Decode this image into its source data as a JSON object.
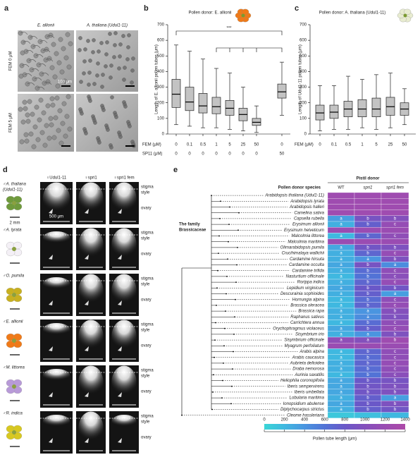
{
  "panel_a": {
    "label": "a",
    "columns": [
      "E. allionii",
      "A. thaliana (Udul1-11)"
    ],
    "rows": [
      "FEM 0 μM",
      "FEM 5 μM"
    ],
    "scale_bar": "100 μm"
  },
  "panel_d": {
    "label": "d",
    "columns": [
      "♀Udul1-11",
      "♀spri1",
      "♀spri1 fem"
    ],
    "rows": [
      {
        "name": [
          "♂A. thaliana",
          "(Udul1-11)"
        ],
        "flower_color": "#6f9a3c"
      },
      {
        "name": [
          "♂A. lyrata"
        ],
        "flower_color": "#f4f0f6"
      },
      {
        "name": [
          "♂O. pumila"
        ],
        "flower_color": "#c8b020"
      },
      {
        "name": [
          "♂E. allionii"
        ],
        "flower_color": "#f07a18"
      },
      {
        "name": [
          "♂M. littorea"
        ],
        "flower_color": "#b89ad8"
      },
      {
        "name": [
          "♂R. indica"
        ],
        "flower_color": "#d8c820"
      }
    ],
    "regions": [
      "stigma",
      "style",
      "ovary"
    ],
    "scale_bar": "500 μm",
    "flower_scale": "2 mm"
  },
  "chart_data": [
    {
      "type": "box",
      "label": "b",
      "title": "Pollen donor: E. allionii",
      "y_label": "Length of E. allionii pollen tubes (μm)",
      "ylim": [
        0,
        700
      ],
      "yticks": [
        0,
        100,
        200,
        300,
        400,
        500,
        600,
        700
      ],
      "significance": "***",
      "x_rows": [
        {
          "name": "FEM (μM)",
          "values": [
            0,
            0.1,
            0.5,
            1,
            5,
            25,
            50,
            0
          ]
        },
        {
          "name": "SP11 (μM)",
          "values": [
            0,
            0,
            0,
            0,
            0,
            0,
            0,
            50
          ]
        }
      ],
      "color": "#b8b8b8",
      "boxes": [
        {
          "whislo": 60,
          "q1": 170,
          "med": 255,
          "q3": 350,
          "whishi": 570
        },
        {
          "whislo": 50,
          "q1": 150,
          "med": 205,
          "q3": 300,
          "whishi": 530
        },
        {
          "whislo": 40,
          "q1": 135,
          "med": 180,
          "q3": 260,
          "whishi": 480
        },
        {
          "whislo": 40,
          "q1": 130,
          "med": 175,
          "q3": 235,
          "whishi": 420
        },
        {
          "whislo": 30,
          "q1": 120,
          "med": 165,
          "q3": 215,
          "whishi": 390
        },
        {
          "whislo": 20,
          "q1": 85,
          "med": 125,
          "q3": 165,
          "whishi": 300
        },
        {
          "whislo": 10,
          "q1": 55,
          "med": 75,
          "q3": 100,
          "whishi": 180
        },
        {
          "whislo": 120,
          "q1": 230,
          "med": 270,
          "q3": 320,
          "whishi": 460
        }
      ]
    },
    {
      "type": "box",
      "label": "c",
      "title": "Pollen donor: A. thaliana (Udul1-11)",
      "y_label": "Length of Udul1-11 pollen tubes (μm)",
      "ylim": [
        0,
        700
      ],
      "yticks": [
        0,
        100,
        200,
        300,
        400,
        500,
        600,
        700
      ],
      "x_rows": [
        {
          "name": "FEM (μM)",
          "values": [
            0,
            0.1,
            0.5,
            1,
            5,
            25,
            50
          ]
        }
      ],
      "color": "#b8b8b8",
      "boxes": [
        {
          "whislo": 20,
          "q1": 90,
          "med": 135,
          "q3": 185,
          "whishi": 310
        },
        {
          "whislo": 30,
          "q1": 100,
          "med": 140,
          "q3": 185,
          "whishi": 310
        },
        {
          "whislo": 30,
          "q1": 110,
          "med": 160,
          "q3": 210,
          "whishi": 370
        },
        {
          "whislo": 40,
          "q1": 110,
          "med": 160,
          "q3": 220,
          "whishi": 350
        },
        {
          "whislo": 30,
          "q1": 110,
          "med": 160,
          "q3": 230,
          "whishi": 380
        },
        {
          "whislo": 40,
          "q1": 120,
          "med": 175,
          "q3": 235,
          "whishi": 390
        },
        {
          "whislo": 60,
          "q1": 120,
          "med": 160,
          "q3": 200,
          "whishi": 290
        }
      ]
    },
    {
      "type": "heatmap",
      "label": "e",
      "title": "Pistil donor",
      "row_header": "Pollen donor species",
      "annotation": [
        "The family",
        "Brassicaceae"
      ],
      "columns": [
        "WT",
        "spri1",
        "spri1 fem"
      ],
      "rows": [
        "Arabidopsis thaliana (Udul1-11)",
        "Arabidopsis lyrata",
        "Arabidopsis halleri",
        "Camelina sativa",
        "Capsella rubella",
        "Erysimum allionii",
        "Erysimum helveticum",
        "Malcolmia littorea",
        "Malcolmia maritima",
        "Olimarabidopsis pumila",
        "Crucihimalaya wallichii",
        "Cardamine hirsuta",
        "Cardamine occulta",
        "Cardamine trifida",
        "Nasturtium officinale",
        "Rorippa indica",
        "Lepidium virginicum",
        "Descurainia sophioides",
        "Hornungia alpina",
        "Brassica oleracea",
        "Brassica rapa",
        "Raphanus sativus",
        "Carrichtera annua",
        "Orychophragmus violaceus",
        "Sisymbrium irio",
        "Sisymbrium officinale",
        "Myagrum perfoliatum",
        "Arabis alpina",
        "Arabis caucasica",
        "Aubrieta deltoidea",
        "Draba nemorosa",
        "Aurinia saxatilis",
        "Heliophila coronopifolia",
        "Iberis sempervirens",
        "Iberis umbellata",
        "Lobularia maritima",
        "Ionopsidium abulense",
        "Diptychocarpus strictus",
        "Cleome hassleriana"
      ],
      "values": [
        [
          1250,
          1250,
          1250
        ],
        [
          1250,
          1250,
          1250
        ],
        [
          1250,
          1250,
          1250
        ],
        [
          1250,
          1250,
          1250
        ],
        [
          350,
          900,
          1000
        ],
        [
          250,
          750,
          1150
        ],
        [
          1200,
          1200,
          1200
        ],
        [
          200,
          700,
          1100
        ],
        [
          1200,
          1200,
          1200
        ],
        [
          300,
          850,
          950
        ],
        [
          250,
          700,
          1150
        ],
        [
          250,
          400,
          950
        ],
        [
          300,
          900,
          450
        ],
        [
          250,
          650,
          1100
        ],
        [
          200,
          600,
          1050
        ],
        [
          250,
          700,
          1150
        ],
        [
          300,
          800,
          850
        ],
        [
          250,
          750,
          350
        ],
        [
          200,
          650,
          1100
        ],
        [
          200,
          700,
          1150
        ],
        [
          250,
          400,
          1000
        ],
        [
          250,
          450,
          950
        ],
        [
          200,
          650,
          1100
        ],
        [
          300,
          750,
          1150
        ],
        [
          250,
          400,
          950
        ],
        [
          1100,
          1000,
          1250
        ],
        [
          1200,
          1200,
          1200
        ],
        [
          200,
          700,
          1100
        ],
        [
          200,
          650,
          1100
        ],
        [
          250,
          700,
          1150
        ],
        [
          250,
          650,
          1100
        ],
        [
          200,
          600,
          1050
        ],
        [
          300,
          800,
          900
        ],
        [
          300,
          850,
          950
        ],
        [
          300,
          850,
          950
        ],
        [
          250,
          750,
          350
        ],
        [
          300,
          800,
          950
        ],
        [
          250,
          750,
          850
        ],
        [
          100,
          150,
          200
        ]
      ],
      "letters": [
        [
          null,
          null,
          null
        ],
        [
          null,
          null,
          null
        ],
        [
          null,
          null,
          null
        ],
        [
          null,
          null,
          null
        ],
        [
          "a",
          "b",
          "b"
        ],
        [
          "a",
          "b",
          "c"
        ],
        [
          null,
          null,
          null
        ],
        [
          "a",
          "b",
          "c"
        ],
        [
          null,
          null,
          null
        ],
        [
          "a",
          "b",
          "b"
        ],
        [
          "a",
          "b",
          "c"
        ],
        [
          "a",
          "a",
          "b"
        ],
        [
          "a",
          "b",
          "a"
        ],
        [
          "a",
          "b",
          "c"
        ],
        [
          "a",
          "b",
          "c"
        ],
        [
          "a",
          "b",
          "c"
        ],
        [
          "a",
          "b",
          "b"
        ],
        [
          "a",
          "b",
          "a"
        ],
        [
          "a",
          "b",
          "c"
        ],
        [
          "a",
          "b",
          "c"
        ],
        [
          "a",
          "a",
          "b"
        ],
        [
          "a",
          "a",
          "b"
        ],
        [
          "a",
          "b",
          "c"
        ],
        [
          "a",
          "b",
          "c"
        ],
        [
          "a",
          "a",
          "b"
        ],
        [
          "a",
          "a",
          "b"
        ],
        [
          null,
          null,
          null
        ],
        [
          "a",
          "b",
          "c"
        ],
        [
          "a",
          "b",
          "c"
        ],
        [
          "a",
          "b",
          "c"
        ],
        [
          "a",
          "b",
          "c"
        ],
        [
          "a",
          "b",
          "c"
        ],
        [
          "a",
          "b",
          "b"
        ],
        [
          "a",
          "b",
          "b"
        ],
        [
          "a",
          "b",
          "b"
        ],
        [
          "a",
          "b",
          "a"
        ],
        [
          "a",
          "b",
          "b"
        ],
        [
          "a",
          "b",
          "b"
        ],
        [
          null,
          null,
          null
        ]
      ],
      "colorbar": {
        "label": "Pollen tube length (μm)",
        "lim": [
          0,
          1400
        ],
        "ticks": [
          0,
          200,
          400,
          600,
          800,
          1000,
          1200,
          1400
        ]
      },
      "colormap": [
        "#3ad6d6",
        "#3fb8e0",
        "#4a95e0",
        "#5273d6",
        "#6a58c8",
        "#8450bc",
        "#9a4cb2",
        "#ad4aa8"
      ]
    }
  ]
}
